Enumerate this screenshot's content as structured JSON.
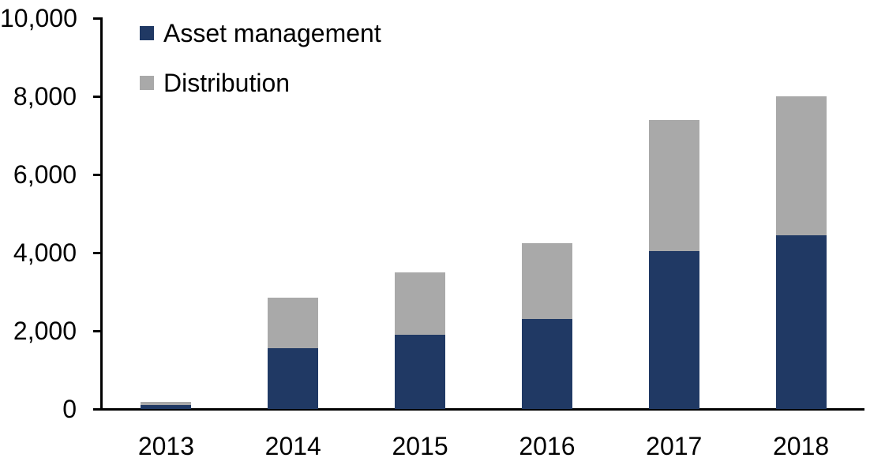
{
  "chart_data": {
    "type": "bar",
    "stacked": true,
    "title": "",
    "categories": [
      "2013",
      "2014",
      "2015",
      "2016",
      "2017",
      "2018"
    ],
    "series": [
      {
        "name": "Asset management",
        "color": "#203964",
        "values": [
          100,
          1550,
          1900,
          2300,
          4050,
          4450
        ]
      },
      {
        "name": "Distribution",
        "color": "#A9A9A9",
        "values": [
          80,
          1300,
          1600,
          1950,
          3350,
          3550
        ]
      }
    ],
    "totals": [
      180,
      2850,
      3500,
      4250,
      7400,
      8000
    ],
    "xlabel": "",
    "ylabel": "",
    "y_axis": {
      "min": 0,
      "max": 10000,
      "tick_interval": 2000,
      "tick_labels": [
        "0",
        "2,000",
        "4,000",
        "6,000",
        "8,000",
        "10,000"
      ]
    },
    "grid": false,
    "legend_position": "top-left",
    "axis_color": "#000000",
    "text_color": "#000000",
    "background_color": "#ffffff"
  }
}
